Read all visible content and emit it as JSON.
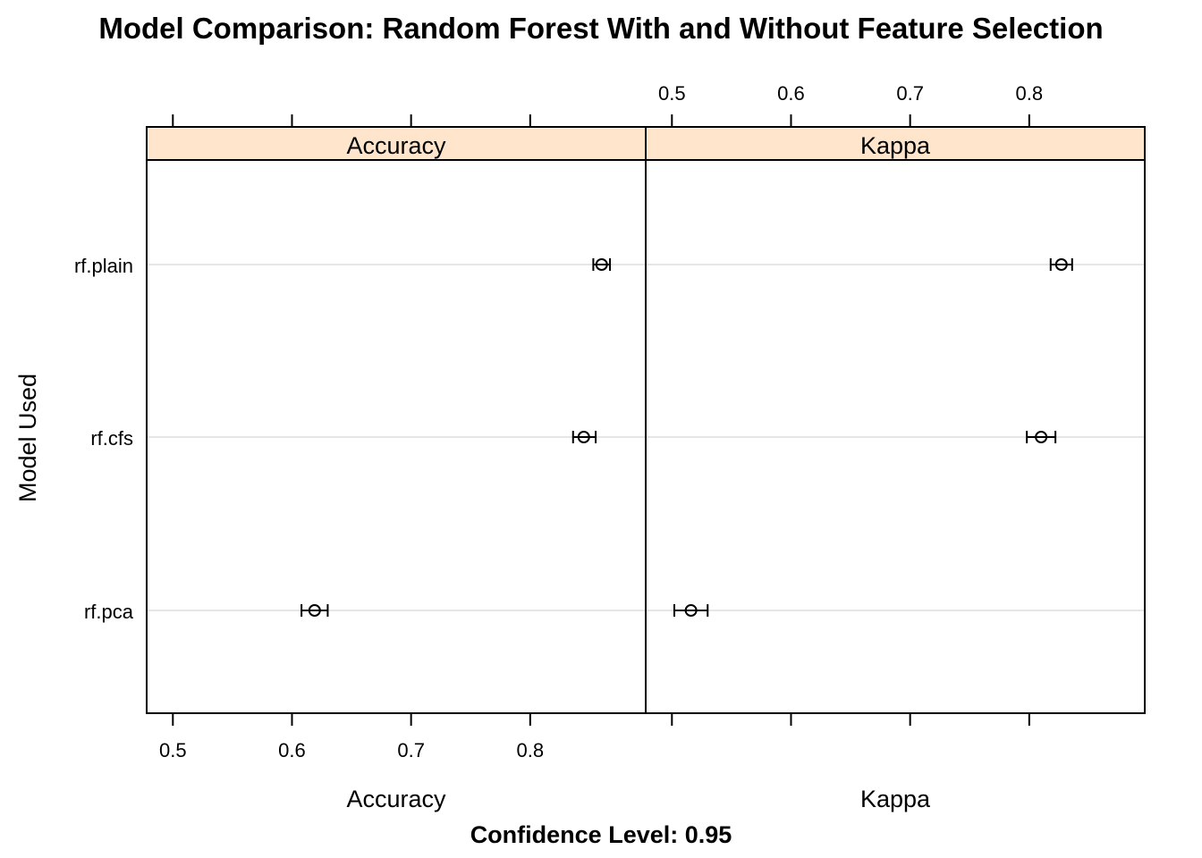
{
  "chart_data": {
    "type": "dotplot-interval",
    "title": "Model Comparison: Random Forest With and Without Feature Selection",
    "subtitle": "Confidence Level: 0.95",
    "ylabel": "Model Used",
    "categories": [
      "rf.plain",
      "rf.cfs",
      "rf.pca"
    ],
    "grid": true,
    "panels": [
      {
        "name": "Accuracy",
        "xlabel": "Accuracy",
        "xlim": [
          0.478,
          0.897
        ],
        "ticks": [
          0.5,
          0.6,
          0.7,
          0.8
        ],
        "tick_labels": [
          "0.5",
          "0.6",
          "0.7",
          "0.8"
        ],
        "estimates": [
          {
            "model": "rf.plain",
            "value": 0.86,
            "lower": 0.853,
            "upper": 0.867
          },
          {
            "model": "rf.cfs",
            "value": 0.845,
            "lower": 0.836,
            "upper": 0.855
          },
          {
            "model": "rf.pca",
            "value": 0.619,
            "lower": 0.608,
            "upper": 0.63
          }
        ]
      },
      {
        "name": "Kappa",
        "xlabel": "Kappa",
        "xlim": [
          0.478,
          0.897
        ],
        "ticks": [
          0.5,
          0.6,
          0.7,
          0.8
        ],
        "tick_labels": [
          "0.5",
          "0.6",
          "0.7",
          "0.8"
        ],
        "estimates": [
          {
            "model": "rf.plain",
            "value": 0.827,
            "lower": 0.818,
            "upper": 0.836
          },
          {
            "model": "rf.cfs",
            "value": 0.81,
            "lower": 0.798,
            "upper": 0.822
          },
          {
            "model": "rf.pca",
            "value": 0.516,
            "lower": 0.502,
            "upper": 0.53
          }
        ]
      }
    ],
    "colors": {
      "strip": "#ffe5cc",
      "grid": "#e6e6e6",
      "frame": "#000000"
    }
  }
}
